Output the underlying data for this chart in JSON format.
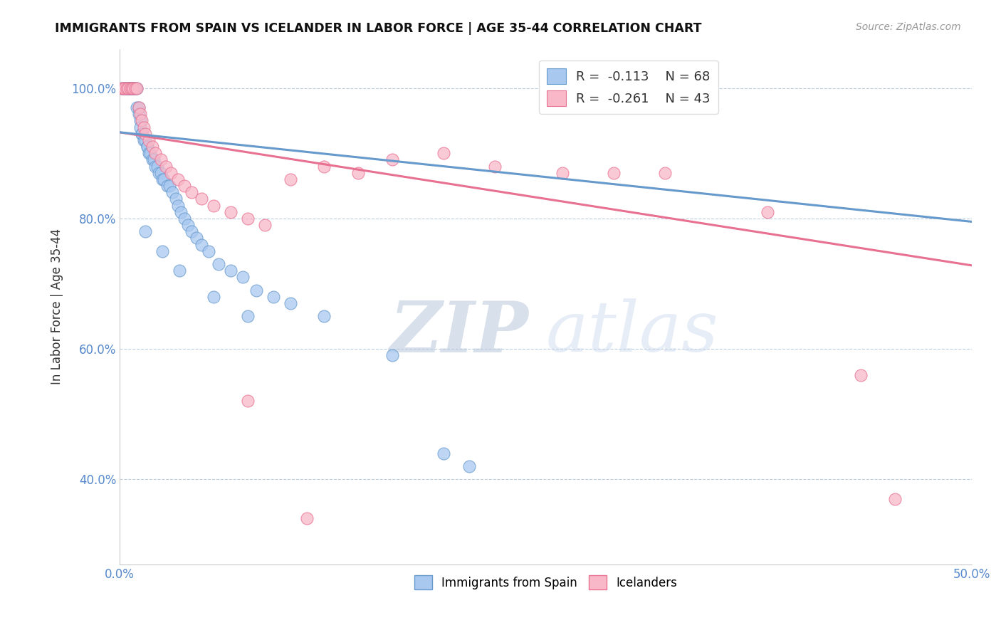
{
  "title": "IMMIGRANTS FROM SPAIN VS ICELANDER IN LABOR FORCE | AGE 35-44 CORRELATION CHART",
  "source": "Source: ZipAtlas.com",
  "ylabel": "In Labor Force | Age 35-44",
  "xlim": [
    0.0,
    0.5
  ],
  "ylim": [
    0.27,
    1.06
  ],
  "xticks": [
    0.0,
    0.1,
    0.2,
    0.3,
    0.4,
    0.5
  ],
  "xticklabels": [
    "0.0%",
    "",
    "",
    "",
    "",
    "50.0%"
  ],
  "yticks": [
    0.4,
    0.6,
    0.8,
    1.0
  ],
  "yticklabels": [
    "40.0%",
    "60.0%",
    "80.0%",
    "100.0%"
  ],
  "blue_color": "#A8C8F0",
  "pink_color": "#F8B8C8",
  "blue_edge_color": "#6699CC",
  "pink_edge_color": "#E87090",
  "legend_R1_val": "-0.113",
  "legend_N1_val": "68",
  "legend_R2_val": "-0.261",
  "legend_N2_val": "43",
  "watermark_zip": "ZIP",
  "watermark_atlas": "atlas",
  "blue_trend_x": [
    0.0,
    0.5
  ],
  "blue_trend_y": [
    0.932,
    0.795
  ],
  "pink_trend_x": [
    0.0,
    0.5
  ],
  "pink_trend_y": [
    0.932,
    0.728
  ],
  "blue_scatter_x": [
    0.001,
    0.002,
    0.003,
    0.003,
    0.004,
    0.004,
    0.005,
    0.005,
    0.005,
    0.006,
    0.006,
    0.006,
    0.007,
    0.007,
    0.007,
    0.008,
    0.008,
    0.009,
    0.009,
    0.01,
    0.01,
    0.011,
    0.011,
    0.012,
    0.012,
    0.013,
    0.013,
    0.014,
    0.015,
    0.016,
    0.016,
    0.017,
    0.018,
    0.019,
    0.02,
    0.021,
    0.022,
    0.023,
    0.024,
    0.025,
    0.026,
    0.028,
    0.029,
    0.031,
    0.033,
    0.034,
    0.036,
    0.038,
    0.04,
    0.042,
    0.045,
    0.048,
    0.052,
    0.058,
    0.065,
    0.072,
    0.08,
    0.09,
    0.1,
    0.12,
    0.015,
    0.025,
    0.035,
    0.055,
    0.075,
    0.16,
    0.19,
    0.205
  ],
  "blue_scatter_y": [
    1.0,
    1.0,
    1.0,
    1.0,
    1.0,
    1.0,
    1.0,
    1.0,
    1.0,
    1.0,
    1.0,
    1.0,
    1.0,
    1.0,
    1.0,
    1.0,
    1.0,
    1.0,
    1.0,
    1.0,
    0.97,
    0.97,
    0.96,
    0.95,
    0.94,
    0.93,
    0.93,
    0.92,
    0.92,
    0.91,
    0.91,
    0.9,
    0.9,
    0.89,
    0.89,
    0.88,
    0.88,
    0.87,
    0.87,
    0.86,
    0.86,
    0.85,
    0.85,
    0.84,
    0.83,
    0.82,
    0.81,
    0.8,
    0.79,
    0.78,
    0.77,
    0.76,
    0.75,
    0.73,
    0.72,
    0.71,
    0.69,
    0.68,
    0.67,
    0.65,
    0.78,
    0.75,
    0.72,
    0.68,
    0.65,
    0.59,
    0.44,
    0.42
  ],
  "pink_scatter_x": [
    0.001,
    0.002,
    0.003,
    0.004,
    0.005,
    0.006,
    0.007,
    0.008,
    0.009,
    0.01,
    0.011,
    0.012,
    0.013,
    0.014,
    0.015,
    0.017,
    0.019,
    0.021,
    0.024,
    0.027,
    0.03,
    0.034,
    0.038,
    0.042,
    0.048,
    0.055,
    0.065,
    0.075,
    0.085,
    0.1,
    0.12,
    0.14,
    0.16,
    0.19,
    0.22,
    0.26,
    0.29,
    0.32,
    0.38,
    0.435,
    0.455,
    0.11,
    0.075
  ],
  "pink_scatter_y": [
    1.0,
    1.0,
    1.0,
    1.0,
    1.0,
    1.0,
    1.0,
    1.0,
    1.0,
    1.0,
    0.97,
    0.96,
    0.95,
    0.94,
    0.93,
    0.92,
    0.91,
    0.9,
    0.89,
    0.88,
    0.87,
    0.86,
    0.85,
    0.84,
    0.83,
    0.82,
    0.81,
    0.8,
    0.79,
    0.86,
    0.88,
    0.87,
    0.89,
    0.9,
    0.88,
    0.87,
    0.87,
    0.87,
    0.81,
    0.56,
    0.37,
    0.34,
    0.52
  ]
}
